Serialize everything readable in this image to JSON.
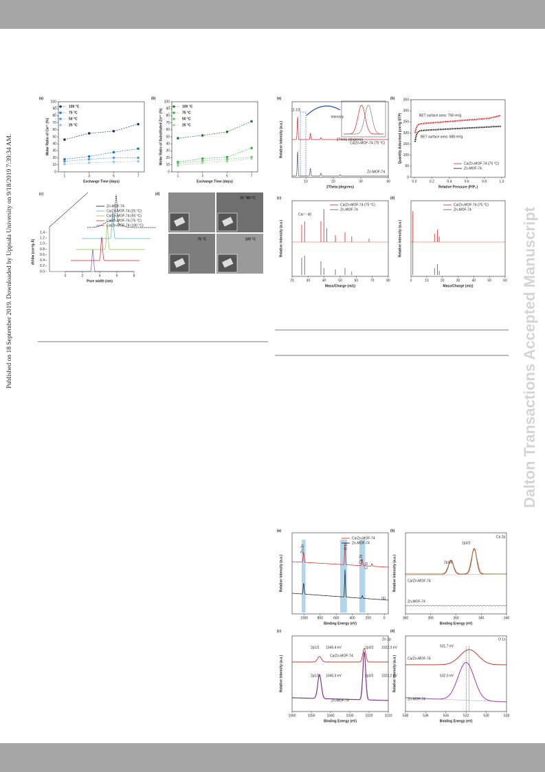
{
  "side_note": "Published on 18 September 2019. Downloaded by Uppsala University on 9/18/2019 7:39:34 AM.",
  "watermark": "Dalton Transactions Accepted Manuscript",
  "figures": [
    {
      "panels": [
        {
          "label": "(a)",
          "xlabel": "Exchange Time (days)",
          "ylabel": "Molar Ratio of Ca²⁺ (%)",
          "x": [
            1,
            3,
            5,
            7
          ],
          "xlim": [
            0.5,
            7.5
          ],
          "xticks": [
            1,
            3,
            5,
            7
          ],
          "ylim": [
            0,
            100
          ],
          "yticks": [
            0,
            10,
            20,
            30,
            40,
            50,
            60,
            70,
            80,
            90,
            100
          ],
          "series": [
            {
              "name": "100 °C",
              "color": "#1f3864",
              "values": [
                46,
                55,
                58,
                68
              ]
            },
            {
              "name": "75 °C",
              "color": "#2e75b6",
              "values": [
                18,
                22,
                28,
                33
              ]
            },
            {
              "name": "50 °C",
              "color": "#5b9bd5",
              "values": [
                15,
                18,
                20,
                20
              ]
            },
            {
              "name": "25 °C",
              "color": "#9dc3e6",
              "values": [
                11,
                13,
                14,
                15
              ]
            }
          ]
        },
        {
          "label": "(b)",
          "xlabel": "Exchange Time (days)",
          "ylabel": "Molar Ratio of Substituted Zn²⁺ (%)",
          "x": [
            1,
            3,
            5,
            7
          ],
          "xlim": [
            0.5,
            7.5
          ],
          "xticks": [
            1,
            3,
            5,
            7
          ],
          "ylim": [
            0,
            100
          ],
          "yticks": [
            0,
            10,
            20,
            30,
            40,
            50,
            60,
            70,
            80,
            90,
            100
          ],
          "series": [
            {
              "name": "100 °C",
              "color": "#1e7b34",
              "values": [
                48,
                52,
                57,
                72
              ]
            },
            {
              "name": "75 °C",
              "color": "#3fae49",
              "values": [
                14,
                19,
                21,
                34
              ]
            },
            {
              "name": "50 °C",
              "color": "#74c476",
              "values": [
                12,
                16,
                18,
                21
              ]
            },
            {
              "name": "25 °C",
              "color": "#a1d99b",
              "values": [
                9,
                13,
                15,
                19
              ]
            }
          ]
        },
        {
          "label": "(c)",
          "xlabel": "Pore width (nm)",
          "ylabel": "dV/dw (cm³/g Å)",
          "xlim": [
            0,
            8
          ],
          "xticks": [
            0,
            2,
            4,
            6,
            8
          ],
          "yticks": [
            "0.0",
            "0.2",
            "0.4",
            "0.6",
            "0.8",
            "1.0",
            "1.2",
            "1.4"
          ],
          "legend": [
            {
              "name": "Zn-MOF-74",
              "color": "#111111"
            },
            {
              "name": "Ca/Zn-MOF-74 (25 °C)",
              "color": "#4fb3d9"
            },
            {
              "name": "Ca/Zn-MOF-74 (50 °C)",
              "color": "#8cc63f"
            },
            {
              "name": "Ca/Zn-MOF-74 (75 °C)",
              "color": "#e31a1c"
            },
            {
              "name": "Ca/Zn-MOF-74 (100 °C)",
              "color": "#7b52ab"
            }
          ]
        },
        {
          "label": "(d)",
          "annotations": [
            "25 °C",
            "50 °C",
            "75 °C",
            "100 °C"
          ]
        }
      ]
    },
    {
      "panels": [
        {
          "label": "(a)",
          "xlabel": "2Theta (degrees)",
          "ylabel": "Relative Intensity (a.u.)",
          "xlim": [
            5,
            40
          ],
          "xticks": [
            10,
            20,
            30,
            40
          ],
          "annotations": [
            "[2-10]",
            "Ca/Zn-MOF-74 (75 °C)",
            "Zn-MOF-74",
            "Intensity",
            "2Theta (degrees)"
          ]
        },
        {
          "label": "(b)",
          "xlabel": "Relative Pressure (P/P₀)",
          "ylabel": "Quantity Adsorbed (cm³/g STP)",
          "xticks": [
            "0.0",
            "0.2",
            "0.4",
            "0.6",
            "0.8",
            "1.0"
          ],
          "ylim": [
            0,
            350
          ],
          "yticks": [
            0,
            50,
            100,
            150,
            200,
            250,
            300,
            350
          ],
          "legend": [
            {
              "name": "Ca/Zn-MOF-74 (75 °C)",
              "color": "#e31a1c"
            },
            {
              "name": "Zn-MOF-74",
              "color": "#111111"
            }
          ],
          "annotations": [
            "BET surface area: 758 m²/g",
            "BET surface area: 688 m²/g"
          ]
        },
        {
          "label": "(c)",
          "xlabel": "Mass/Charge (m/z)",
          "ylabel": "Relative Intensity (a.u.)",
          "xlim": [
            20,
            80
          ],
          "xticks": [
            20,
            30,
            40,
            50,
            60,
            70,
            80
          ],
          "legend": [
            {
              "name": "Ca/Zn-MOF-74 (75 °C)",
              "color": "#e31a1c"
            },
            {
              "name": "Zn-MOF-74",
              "color": "#555555"
            }
          ],
          "annotations": [
            "Ca²⁺: 40"
          ]
        },
        {
          "label": "(d)",
          "xlabel": "Mass/Charge (m/z)",
          "ylabel": "Relative Intensity (a.u.)",
          "xlim": [
            0,
            60
          ],
          "xticks": [
            0,
            10,
            20,
            30,
            40,
            50,
            60
          ],
          "legend": [
            {
              "name": "Ca/Zn-MOF-74 (75 °C)",
              "color": "#e31a1c"
            },
            {
              "name": "Zn-MOF-74",
              "color": "#555555"
            }
          ]
        }
      ]
    },
    {
      "panels": [
        {
          "label": "(a)",
          "xlabel": "Binding Energy (eV)",
          "ylabel": "Relative Intensity (a.u.)",
          "xlim": [
            1150,
            -50
          ],
          "xticks": [
            1000,
            800,
            600,
            400,
            200,
            0
          ],
          "legend": [
            {
              "name": "Ca/Zn-MOF-74",
              "color": "#e31a1c"
            },
            {
              "name": "Zn-MOF-74",
              "color": "#111111"
            }
          ],
          "annotations": [
            "Zn 2p",
            "O 1s",
            "Ca 2p",
            "C 1s",
            "(a)"
          ]
        },
        {
          "label": "(b)",
          "xlabel": "Binding Energy (eV)",
          "ylabel": "Relative Intensity (a.u.)",
          "xlim": [
            360,
            340
          ],
          "xticks": [
            360,
            355,
            350,
            345,
            340
          ],
          "annotations": [
            "Ca 2p",
            "2p1/2",
            "2p3/2",
            "Ca/Zn-MOF-74",
            "Zn-MOF-74"
          ]
        },
        {
          "label": "(c)",
          "xlabel": "Binding Energy (eV)",
          "ylabel": "Relative Intensity (a.u.)",
          "xlim": [
            1060,
            1010
          ],
          "xticks": [
            1060,
            1050,
            1040,
            1030,
            1020,
            1010
          ],
          "annotations": [
            "Zn 2p",
            "2p1/2",
            "1045.4 eV",
            "2p3/2",
            "1022.3 eV",
            "Ca/Zn-MOF-74",
            "2p1/2",
            "1045.3 eV",
            "2p3/2",
            "1022.2 eV",
            "Zn-MOF-74"
          ]
        },
        {
          "label": "(d)",
          "xlabel": "Binding Energy (eV)",
          "ylabel": "Relative Intensity (a.u.)",
          "xlim": [
            538,
            528
          ],
          "xticks": [
            538,
            536,
            534,
            532,
            530,
            528
          ],
          "annotations": [
            "O 1s",
            "531.7 eV",
            "Ca/Zn-MOF-74",
            "532.0 eV",
            "Zn-MOF-74"
          ]
        }
      ]
    }
  ]
}
